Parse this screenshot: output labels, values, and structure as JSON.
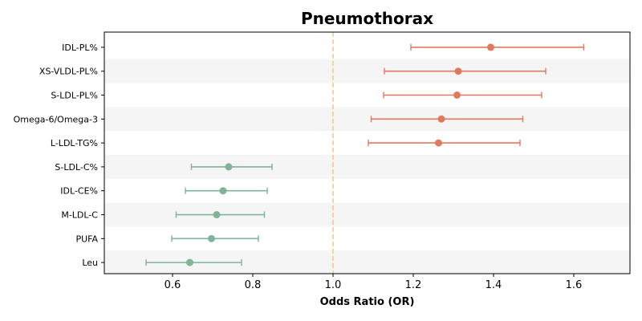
{
  "chart_data": {
    "type": "forest",
    "title": "Pneumothorax",
    "xlabel": "Odds Ratio (OR)",
    "ylabel": "",
    "xlim": [
      0.43,
      1.74
    ],
    "xticks": [
      0.6,
      0.8,
      1.0,
      1.2,
      1.4,
      1.6
    ],
    "xtick_labels": [
      "0.6",
      "0.8",
      "1.0",
      "1.2",
      "1.4",
      "1.6"
    ],
    "reference_line": 1.0,
    "grid": false,
    "colors": {
      "risk": "#e07a5f",
      "protective": "#81b29a",
      "reference": "#f2cc8f",
      "band": "#f5f5f5"
    },
    "categories": [
      "IDL-PL%",
      "XS-VLDL-PL%",
      "S-LDL-PL%",
      "Omega-6/Omega-3",
      "L-LDL-TG%",
      "S-LDL-C%",
      "IDL-CE%",
      "M-LDL-C",
      "PUFA",
      "Leu"
    ],
    "or": [
      1.393,
      1.312,
      1.309,
      1.27,
      1.263,
      0.74,
      0.726,
      0.71,
      0.697,
      0.643
    ],
    "ci_lower": [
      1.194,
      1.128,
      1.126,
      1.095,
      1.088,
      0.647,
      0.632,
      0.609,
      0.598,
      0.534
    ],
    "ci_upper": [
      1.625,
      1.53,
      1.52,
      1.473,
      1.466,
      0.848,
      0.836,
      0.829,
      0.814,
      0.772
    ]
  }
}
